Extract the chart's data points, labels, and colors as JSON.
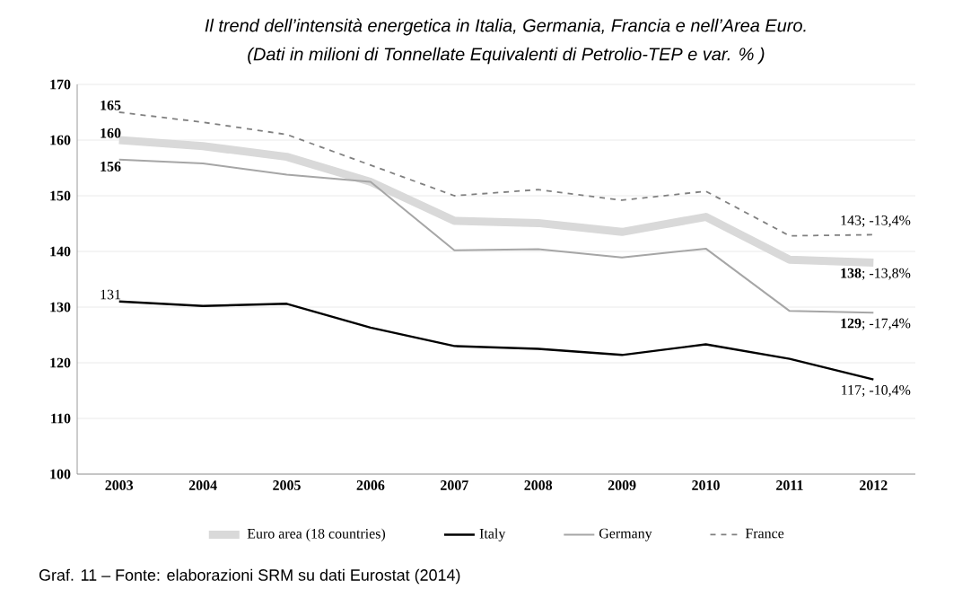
{
  "chart_data": {
    "type": "line",
    "title": "Il trend dell’intensità energetica in Italia, Germania, Francia e nell’Area Euro.",
    "subtitle": "(Dati in milioni di Tonnellate Equivalenti di Petrolio-TEP e var. % )",
    "categories": [
      "2003",
      "2004",
      "2005",
      "2006",
      "2007",
      "2008",
      "2009",
      "2010",
      "2011",
      "2012"
    ],
    "series": [
      {
        "name": "Euro area (18 countries)",
        "color": "#d9d9d9",
        "line_style": "solid",
        "values": [
          160,
          158.9,
          157,
          152.5,
          145.5,
          145.1,
          143.5,
          146.2,
          138.5,
          138
        ],
        "value_labels": [
          "**160**",
          null,
          null,
          null,
          null,
          null,
          null,
          null,
          null,
          "**138**; -13,8%"
        ]
      },
      {
        "name": "Italy",
        "color": "#000000",
        "line_style": "solid",
        "values": [
          131,
          130.2,
          130.6,
          126.3,
          123,
          122.5,
          121.4,
          123.3,
          120.7,
          117
        ],
        "value_labels": [
          "131",
          null,
          null,
          null,
          null,
          null,
          null,
          null,
          null,
          "117; -10,4%"
        ]
      },
      {
        "name": "Germany",
        "color": "#a6a6a6",
        "line_style": "solid",
        "values": [
          156.5,
          155.8,
          153.8,
          152.5,
          140.2,
          140.4,
          138.9,
          140.5,
          129.3,
          129
        ],
        "value_labels": [
          "**156**",
          null,
          null,
          null,
          null,
          null,
          null,
          null,
          null,
          "**129**; -17,4%"
        ]
      },
      {
        "name": "France",
        "color": "#808080",
        "line_style": "dashed",
        "values": [
          165,
          163.2,
          161,
          155.5,
          150,
          151.1,
          149.2,
          150.8,
          142.8,
          143
        ],
        "value_labels": [
          "**165**",
          null,
          null,
          null,
          null,
          null,
          null,
          null,
          null,
          "143; -13,4%"
        ]
      }
    ],
    "ylim": [
      100,
      170
    ],
    "yticks": [
      100,
      110,
      120,
      130,
      140,
      150,
      160,
      170
    ],
    "grid": "y",
    "legend": "bottom",
    "marker": "none",
    "annotations": [
      "Graf. 11 – Fonte: elaborazioni SRM su dati Eurostat (2014)"
    ]
  }
}
